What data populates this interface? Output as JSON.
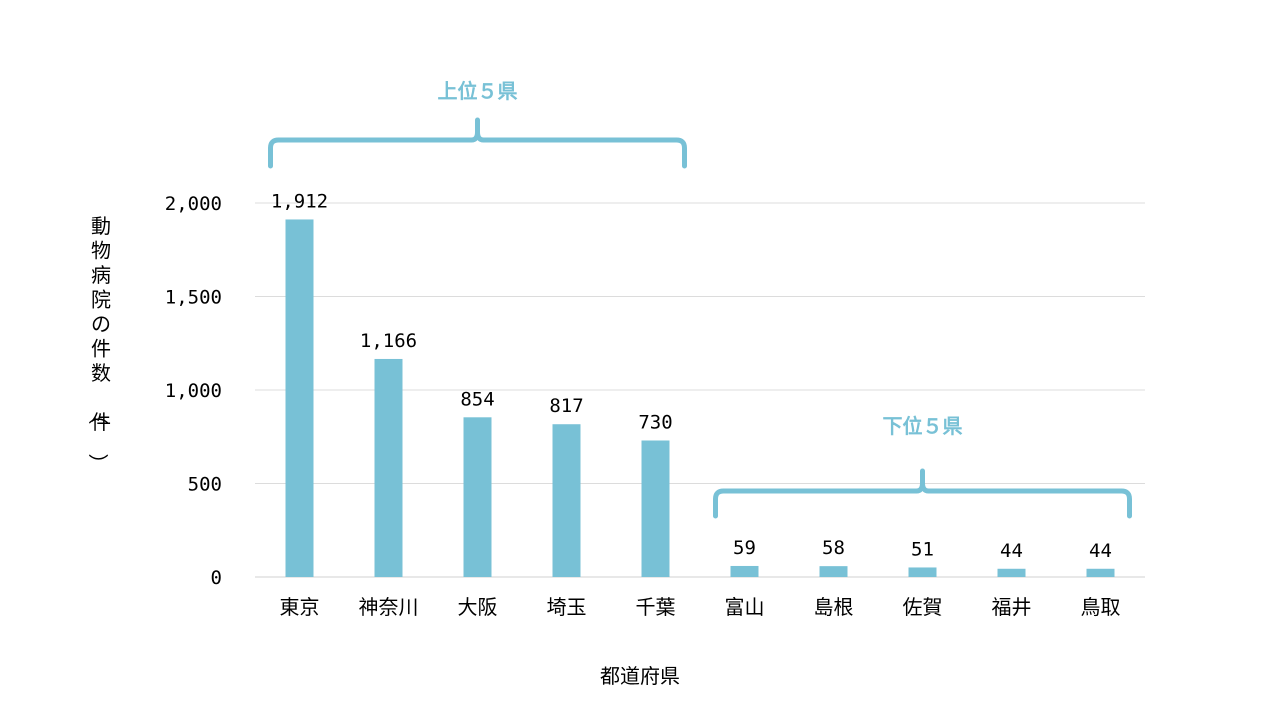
{
  "chart_data": {
    "type": "bar",
    "categories": [
      "東京",
      "神奈川",
      "大阪",
      "埼玉",
      "千葉",
      "富山",
      "島根",
      "佐賀",
      "福井",
      "鳥取"
    ],
    "values": [
      1912,
      1166,
      854,
      817,
      730,
      59,
      58,
      51,
      44,
      44
    ],
    "data_labels": [
      "1,912",
      "1,166",
      "854",
      "817",
      "730",
      "59",
      "58",
      "51",
      "44",
      "44"
    ],
    "xlabel": "都道府県",
    "ylabel": "動物病院の件数（件）",
    "ylim": [
      0,
      2000
    ],
    "yticks": [
      0,
      500,
      1000,
      1500,
      2000
    ],
    "ytick_labels": [
      "0",
      "500",
      "1,000",
      "1,500",
      "2,000"
    ],
    "grid": true,
    "bar_color": "#78c1d6",
    "annotations": [
      {
        "text": "上位５県",
        "from_index": 0,
        "to_index": 4
      },
      {
        "text": "下位５県",
        "from_index": 5,
        "to_index": 9
      }
    ]
  }
}
